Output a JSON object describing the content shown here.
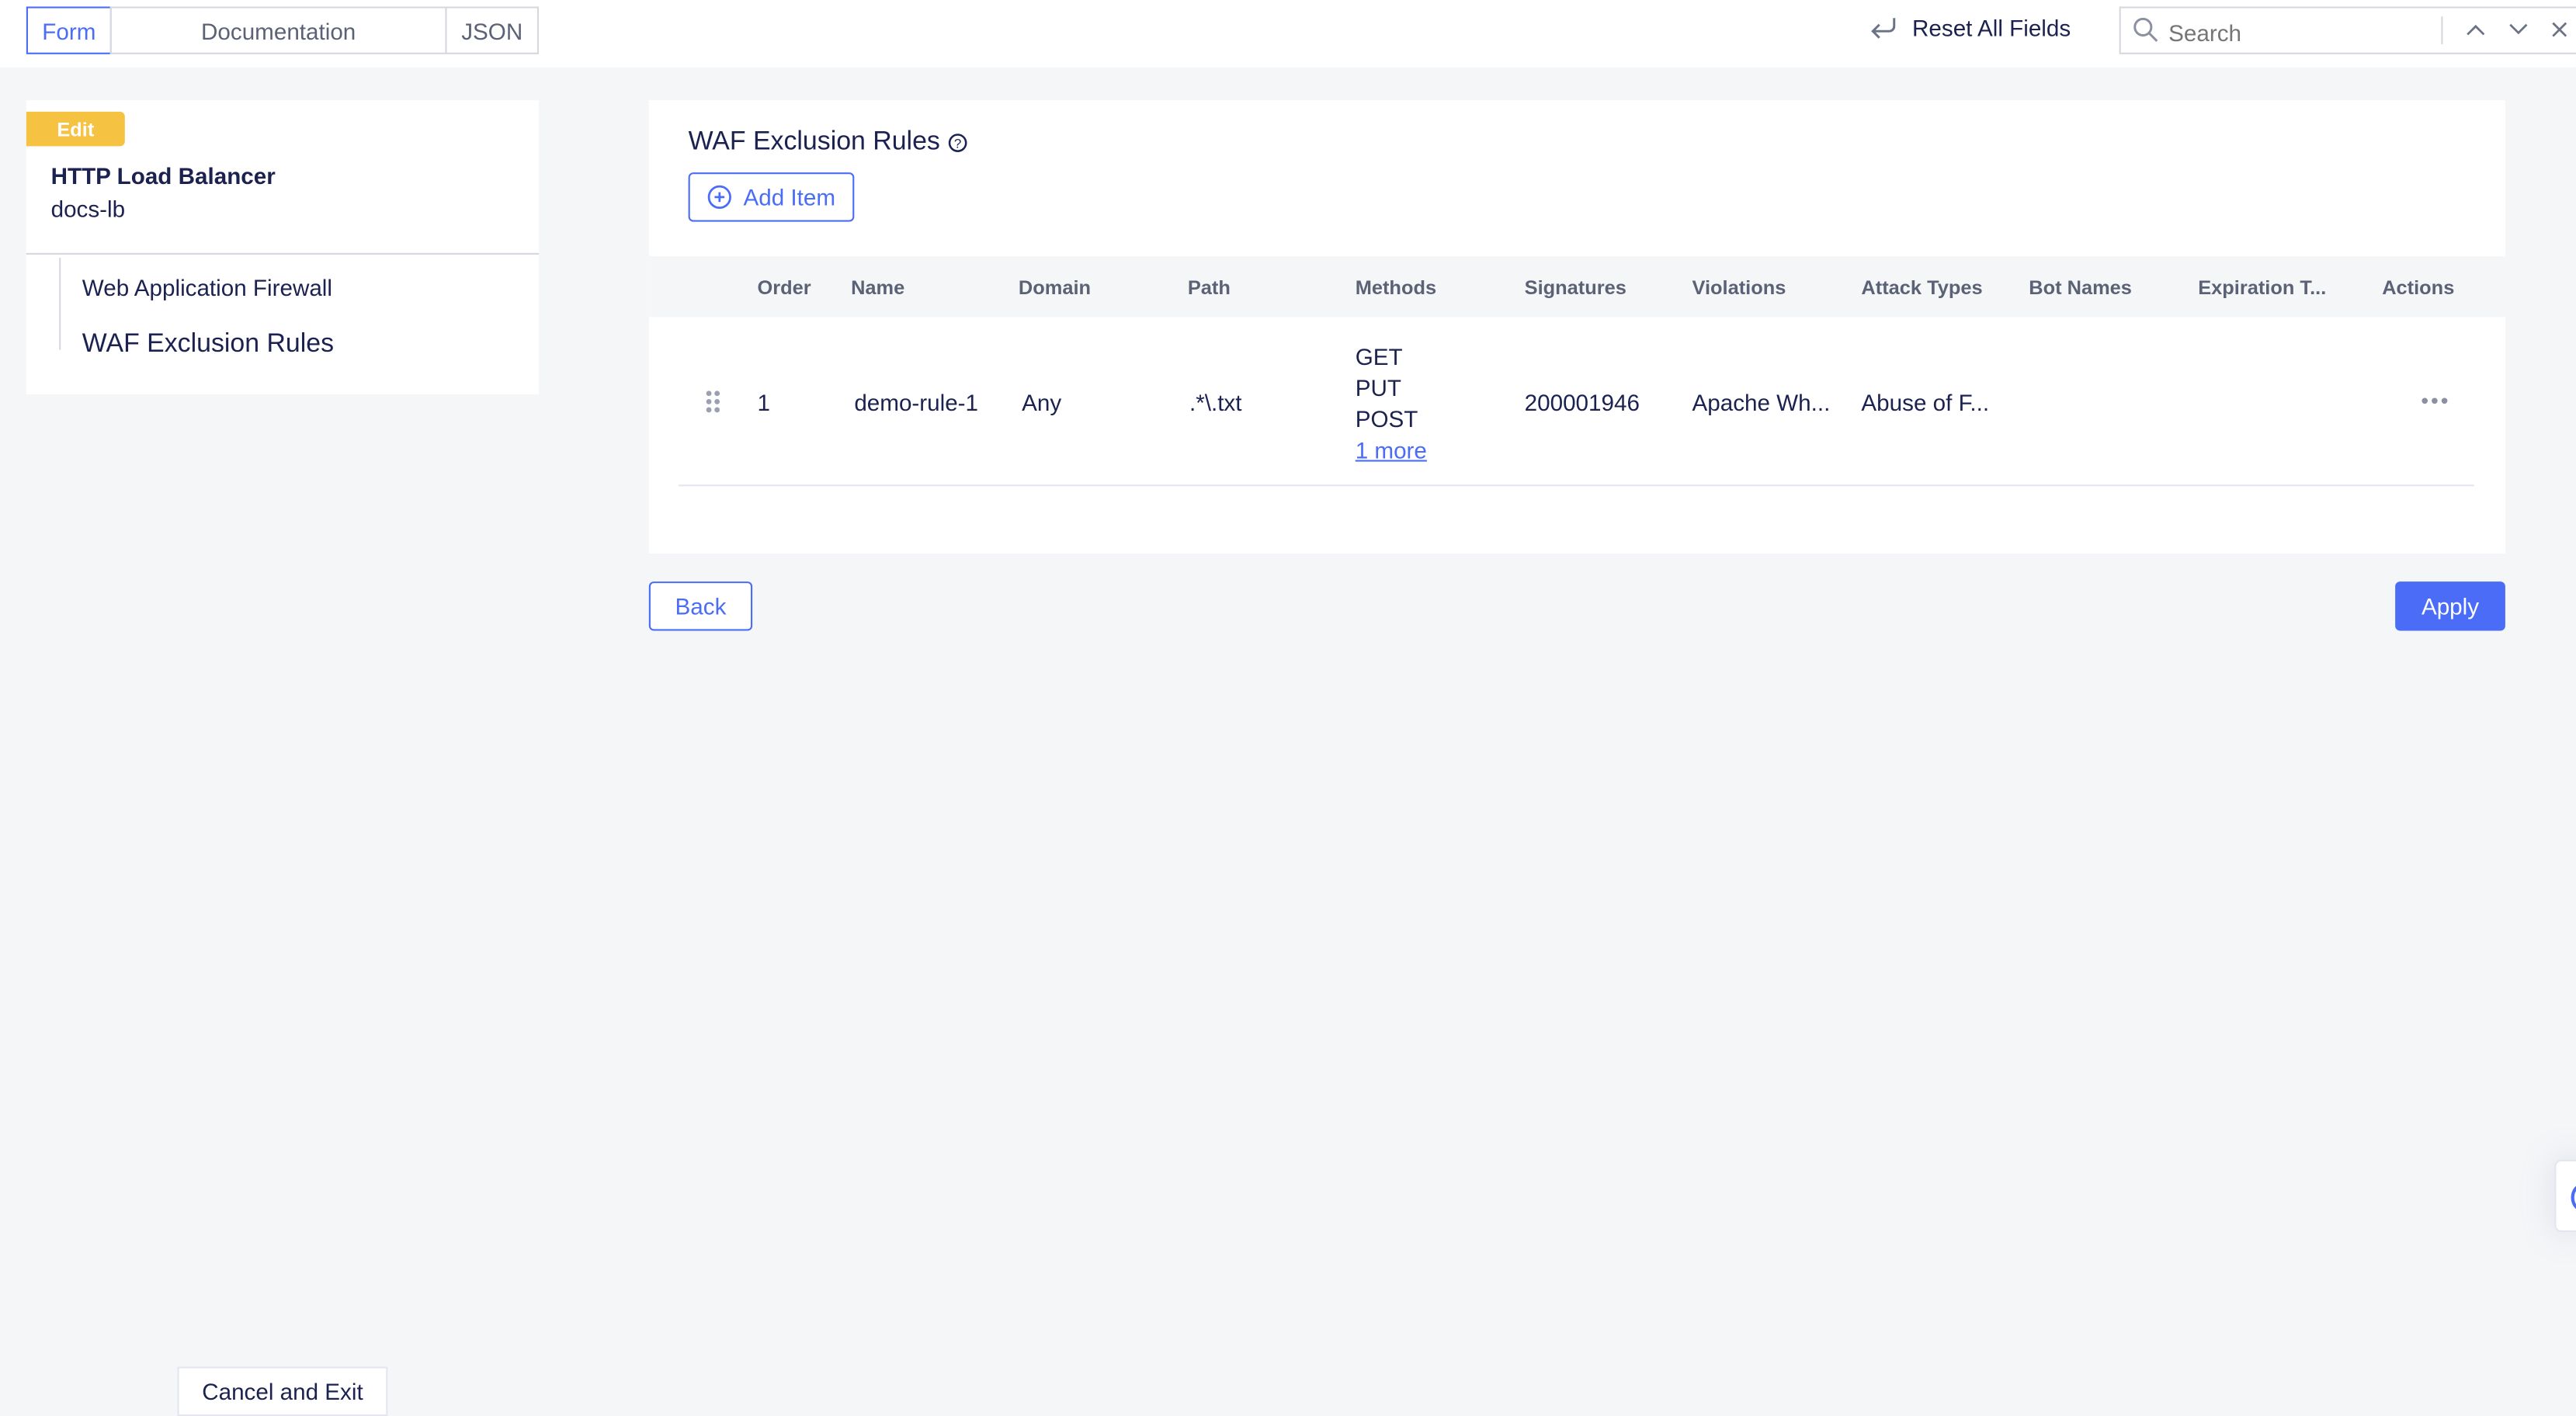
{
  "tabs": [
    {
      "label": "Form",
      "active": true
    },
    {
      "label": "Documentation"
    },
    {
      "label": "JSON"
    }
  ],
  "toolbar": {
    "reset_label": "Reset All Fields",
    "search_placeholder": "Search"
  },
  "sidebar": {
    "badge": "Edit",
    "title": "HTTP Load Balancer",
    "subtitle": "docs-lb",
    "tree": [
      {
        "label": "Web Application Firewall"
      },
      {
        "label": "WAF Exclusion Rules",
        "current": true
      }
    ]
  },
  "main": {
    "title": "WAF Exclusion Rules",
    "add_label": "Add Item",
    "columns": [
      "Order",
      "Name",
      "Domain",
      "Path",
      "Methods",
      "Signatures",
      "Violations",
      "Attack Types",
      "Bot Names",
      "Expiration T...",
      "Actions"
    ],
    "rows": [
      {
        "order": "1",
        "name": "demo-rule-1",
        "domain": "Any",
        "path": ".*\\.txt",
        "methods": [
          "GET",
          "PUT",
          "POST"
        ],
        "more": "1 more",
        "signatures": "200001946",
        "violations": "Apache Wh...",
        "attack_types": "Abuse of F...",
        "bot_names": "",
        "expiration": ""
      }
    ]
  },
  "footer": {
    "back_label": "Back",
    "apply_label": "Apply",
    "cancel_label": "Cancel and Exit"
  },
  "colors": {
    "accent": "#4a6cf7",
    "badge": "#f5c242",
    "text": "#1b2250"
  }
}
